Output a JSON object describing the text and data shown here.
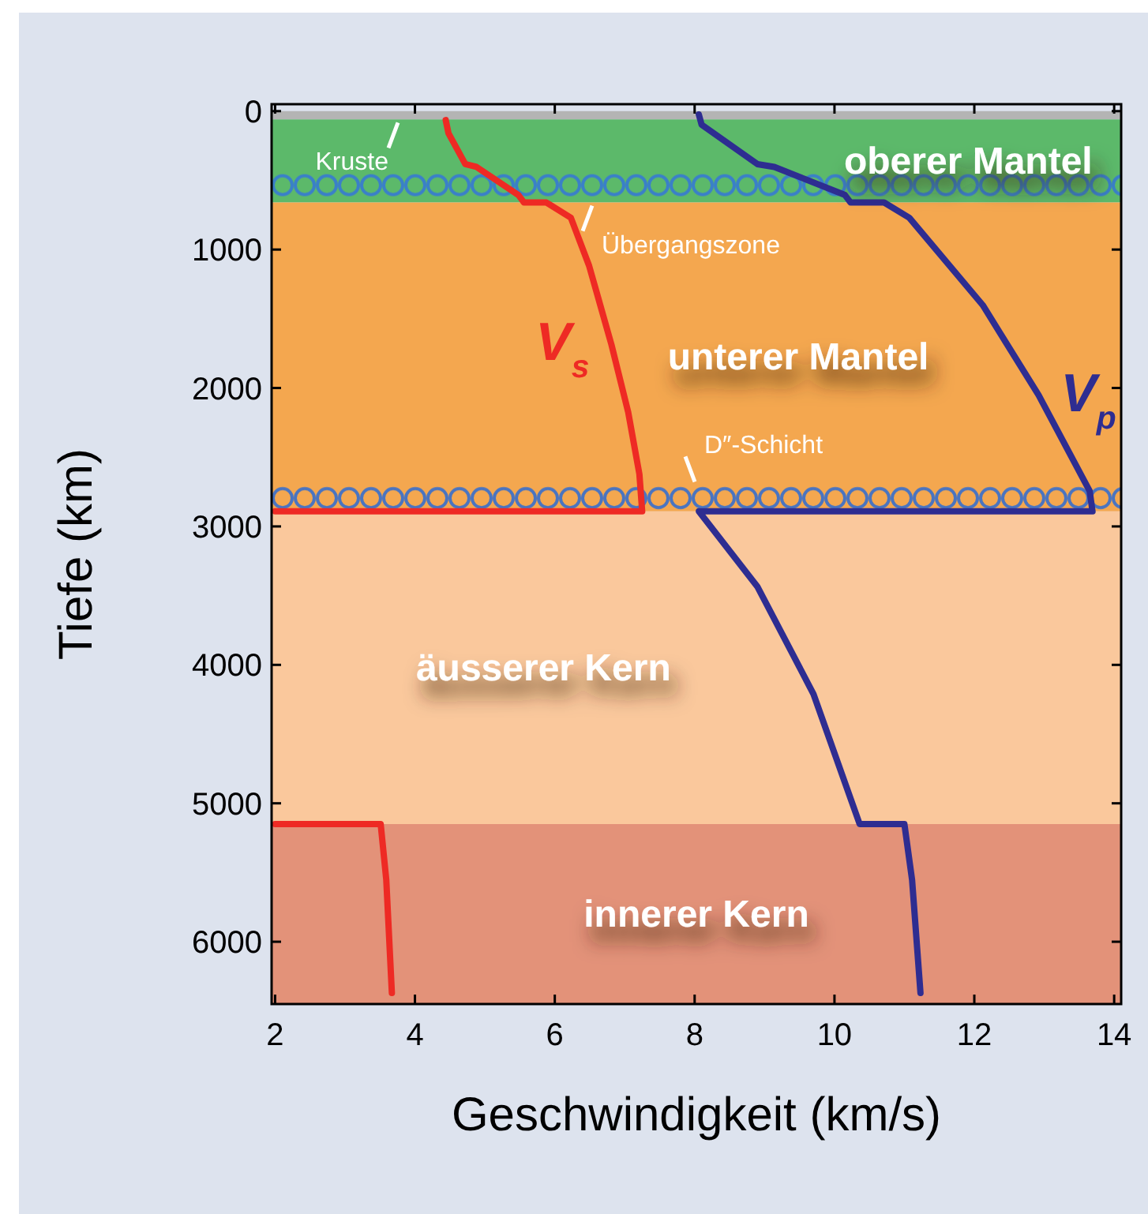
{
  "chart_data": {
    "type": "line",
    "xlabel": "Geschwindigkeit (km/s)",
    "ylabel": "Tiefe (km)",
    "xlim": [
      1.95,
      14.1
    ],
    "xticks": [
      2,
      4,
      6,
      8,
      10,
      12,
      14
    ],
    "ylim": [
      6450,
      -50
    ],
    "yticks": [
      0,
      1000,
      2000,
      3000,
      4000,
      5000,
      6000
    ],
    "grid": false,
    "legend": false,
    "marker": "none",
    "line_style": "solid",
    "series": [
      {
        "name": "V$_{s}$",
        "color": "#ee2a24",
        "x": [
          4.44,
          4.48,
          4.72,
          4.88,
          5.48,
          5.56,
          5.88,
          6.23,
          6.49,
          6.81,
          7.05,
          7.21,
          7.25,
          2,
          null,
          2,
          3.51,
          3.59,
          3.67
        ],
        "values": [
          65,
          160,
          383,
          403,
          606,
          660,
          660,
          770,
          1116,
          1686,
          2175,
          2622,
          2891,
          2891,
          null,
          5150,
          5150,
          5553,
          6370
        ]
      },
      {
        "name": "V$_{p}$",
        "color": "#2e2d91",
        "x": [
          8.06,
          8.1,
          8.9,
          9.14,
          10.15,
          10.23,
          10.71,
          11.07,
          12.12,
          12.92,
          13.65,
          13.69,
          8.06,
          8.9,
          9.7,
          10.36,
          11.0,
          11.11,
          11.23
        ],
        "values": [
          24,
          98,
          383,
          403,
          606,
          660,
          660,
          770,
          1401,
          2052,
          2745,
          2891,
          2891,
          3437,
          4211,
          5150,
          5150,
          5553,
          6370
        ]
      }
    ],
    "bands": [
      {
        "axis": "y",
        "from": 0,
        "to": 60,
        "label": "Kruste",
        "color": "#b4b4b4"
      },
      {
        "axis": "y",
        "from": 60,
        "to": 660,
        "label": "oberer Mantel",
        "color": "#5cb96a"
      },
      {
        "axis": "y",
        "from": 410,
        "to": 660,
        "label": "Übergangszone",
        "color": "#3a80c8"
      },
      {
        "axis": "y",
        "from": 660,
        "to": 2891,
        "label": "unterer Mantel",
        "color": "#f4a74f"
      },
      {
        "axis": "y",
        "from": 2700,
        "to": 2891,
        "label": "D″-Schicht",
        "color": "#4a74c0"
      },
      {
        "axis": "y",
        "from": 2891,
        "to": 5150,
        "label": "äusserer Kern",
        "color": "#fac89c"
      },
      {
        "axis": "y",
        "from": 5150,
        "to": 6450,
        "label": "innerer Kern",
        "color": "#e39279"
      }
    ]
  }
}
